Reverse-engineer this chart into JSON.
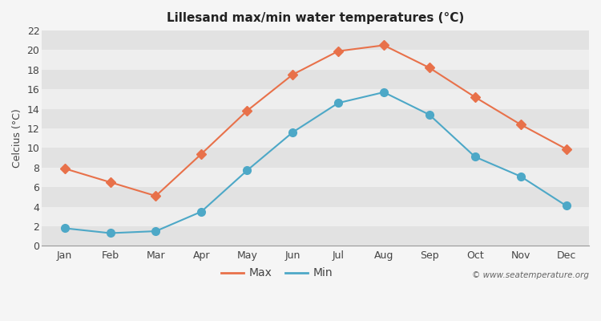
{
  "title": "Lillesand max/min water temperatures (°C)",
  "ylabel": "Celcius (°C)",
  "months": [
    "Jan",
    "Feb",
    "Mar",
    "Apr",
    "May",
    "Jun",
    "Jul",
    "Aug",
    "Sep",
    "Oct",
    "Nov",
    "Dec"
  ],
  "max_temps": [
    7.9,
    6.5,
    5.1,
    9.4,
    13.8,
    17.5,
    19.9,
    20.5,
    18.2,
    15.2,
    12.4,
    9.9
  ],
  "min_temps": [
    1.8,
    1.3,
    1.5,
    3.5,
    7.7,
    11.6,
    14.6,
    15.7,
    13.4,
    9.1,
    7.1,
    4.1
  ],
  "max_color": "#e8714a",
  "min_color": "#4da8c7",
  "bg_color": "#f5f5f5",
  "plot_bg_light": "#eeeeee",
  "plot_bg_dark": "#e2e2e2",
  "ylim": [
    0,
    22
  ],
  "yticks": [
    0,
    2,
    4,
    6,
    8,
    10,
    12,
    14,
    16,
    18,
    20,
    22
  ],
  "watermark": "© www.seatemperature.org",
  "legend_max": "Max",
  "legend_min": "Min"
}
